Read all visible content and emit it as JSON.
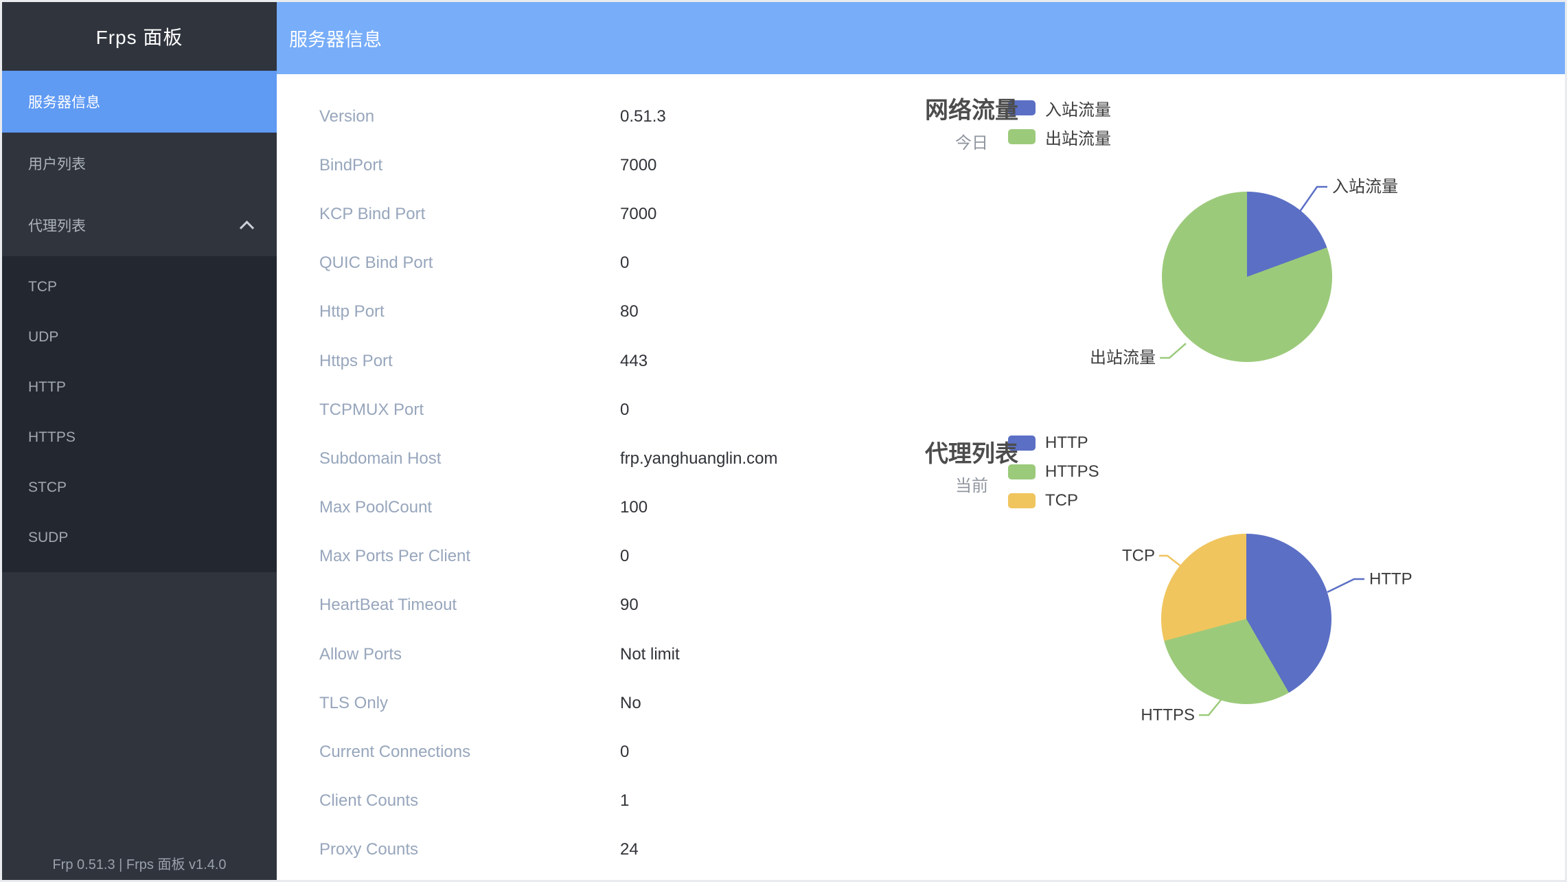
{
  "app": {
    "sidebar_title": "Frps 面板",
    "sidebar_footer": "Frp 0.51.3 | Frps 面板 v1.4.0"
  },
  "header": {
    "title": "服务器信息"
  },
  "sidebar": {
    "items": [
      {
        "label": "服务器信息",
        "active": true
      },
      {
        "label": "用户列表",
        "active": false
      },
      {
        "label": "代理列表",
        "active": false,
        "expanded": true
      }
    ],
    "submenu": [
      "TCP",
      "UDP",
      "HTTP",
      "HTTPS",
      "STCP",
      "SUDP"
    ]
  },
  "server": {
    "rows": [
      {
        "label": "Version",
        "value": "0.51.3"
      },
      {
        "label": "BindPort",
        "value": "7000"
      },
      {
        "label": "KCP Bind Port",
        "value": "7000"
      },
      {
        "label": "QUIC Bind Port",
        "value": "0"
      },
      {
        "label": "Http Port",
        "value": "80"
      },
      {
        "label": "Https Port",
        "value": "443"
      },
      {
        "label": "TCPMUX Port",
        "value": "0"
      },
      {
        "label": "Subdomain Host",
        "value": "frp.yanghuanglin.com"
      },
      {
        "label": "Max PoolCount",
        "value": "100"
      },
      {
        "label": "Max Ports Per Client",
        "value": "0"
      },
      {
        "label": "HeartBeat Timeout",
        "value": "90"
      },
      {
        "label": "Allow Ports",
        "value": "Not limit"
      },
      {
        "label": "TLS Only",
        "value": "No"
      },
      {
        "label": "Current Connections",
        "value": "0"
      },
      {
        "label": "Client Counts",
        "value": "1"
      },
      {
        "label": "Proxy Counts",
        "value": "24"
      }
    ]
  },
  "chart_data": [
    {
      "type": "pie",
      "title": "网络流量",
      "subtitle": "今日",
      "legend_position": "top-left",
      "values_are_percent": true,
      "series": [
        {
          "name": "入站流量",
          "value": 19.4,
          "color": "#5b6fc5"
        },
        {
          "name": "出站流量",
          "value": 80.6,
          "color": "#9cca7b"
        }
      ]
    },
    {
      "type": "pie",
      "title": "代理列表",
      "subtitle": "当前",
      "legend_position": "top-left",
      "values_are_percent": false,
      "series": [
        {
          "name": "HTTP",
          "value": 10,
          "color": "#5b6fc5"
        },
        {
          "name": "HTTPS",
          "value": 7,
          "color": "#9cca7b"
        },
        {
          "name": "TCP",
          "value": 7,
          "color": "#f0c55e"
        }
      ]
    }
  ],
  "colors": {
    "header_bg": "#77adf9",
    "sidebar_bg": "#2f343d",
    "submenu_bg": "#23272f",
    "active_item_bg": "#5f9af3",
    "kv_label": "#97a6bc",
    "kv_value": "#303338"
  }
}
